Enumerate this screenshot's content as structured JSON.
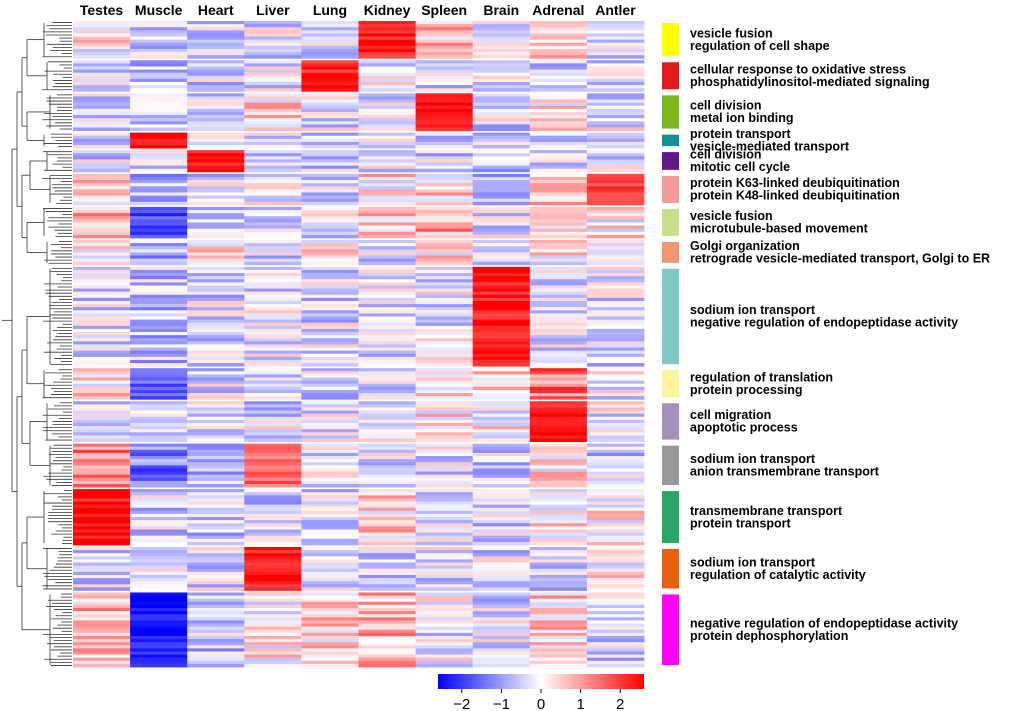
{
  "chart_data": {
    "type": "heatmap",
    "title": "",
    "columns": [
      "Testes",
      "Muscle",
      "Heart",
      "Liver",
      "Lung",
      "Kidney",
      "Spleen",
      "Brain",
      "Adrenal",
      "Antler"
    ],
    "color_scale": {
      "min": -2.6,
      "max": 2.6,
      "low_color": "#0000ff",
      "mid_color": "#ffffff",
      "high_color": "#ff0000",
      "ticks": [
        -2,
        -1,
        0,
        1,
        2
      ],
      "tick_labels": [
        "−2",
        "−1",
        "0",
        "1",
        "2"
      ]
    },
    "clusters": [
      {
        "rows": 12,
        "means": [
          0.2,
          -0.3,
          -0.4,
          -0.3,
          -0.2,
          2.3,
          0.6,
          -0.2,
          0.5,
          -0.4
        ],
        "color": "#ffff00",
        "terms": [
          "vesicle fusion",
          "regulation of cell shape"
        ]
      },
      {
        "rows": 10,
        "means": [
          -0.3,
          -0.4,
          -0.4,
          -0.2,
          2.3,
          -0.2,
          -0.3,
          -0.3,
          -0.3,
          -0.4
        ],
        "color": "#e31a1c",
        "terms": [
          "cellular response to oxidative stress",
          "phosphatidylinositol-mediated signaling"
        ]
      },
      {
        "rows": 12,
        "means": [
          -0.3,
          -0.3,
          -0.3,
          0.4,
          -0.2,
          -0.3,
          2.4,
          -0.3,
          0.3,
          -0.2
        ],
        "color": "#7cba1b",
        "terms": [
          "cell division",
          "metal ion binding"
        ]
      },
      {
        "rows": 5,
        "means": [
          -0.3,
          2.4,
          0.2,
          -0.3,
          -0.3,
          -0.3,
          -0.3,
          -0.3,
          -0.3,
          -0.3
        ],
        "color": "#17908f",
        "terms": [
          "protein transport",
          "vesicle-mediated transport"
        ]
      },
      {
        "rows": 7,
        "means": [
          -0.3,
          -0.3,
          2.4,
          -0.3,
          -0.3,
          -0.3,
          -0.3,
          -0.4,
          -0.3,
          -0.3
        ],
        "color": "#5b1a84",
        "terms": [
          "cell division",
          "mitotic cell cycle"
        ]
      },
      {
        "rows": 10,
        "means": [
          0.4,
          -0.6,
          -0.3,
          -0.2,
          -0.3,
          0.3,
          0.4,
          -0.5,
          0.5,
          1.8
        ],
        "color": "#f29b9b",
        "terms": [
          "protein K63-linked deubiquitination",
          "protein K48-linked deubiquitination"
        ]
      },
      {
        "rows": 10,
        "means": [
          0.7,
          -1.8,
          -0.3,
          -0.3,
          -0.3,
          0.4,
          0.9,
          -0.2,
          0.2,
          0.2
        ],
        "color": "#c8df8a",
        "terms": [
          "vesicle fusion",
          "microtubule-based movement"
        ]
      },
      {
        "rows": 8,
        "means": [
          0.2,
          -0.7,
          0.3,
          -0.3,
          0.4,
          -0.3,
          0.3,
          -0.3,
          0.2,
          0.2
        ],
        "color": "#f0976e",
        "terms": [
          "Golgi organization",
          "retrograde vesicle-mediated transport, Golgi to ER"
        ]
      },
      {
        "rows": 32,
        "means": [
          -0.4,
          -0.5,
          -0.3,
          -0.2,
          -0.3,
          -0.2,
          -0.2,
          2.4,
          -0.3,
          -0.3
        ],
        "color": "#7ec8c6",
        "terms": [
          "sodium ion transport",
          "negative regulation of endopeptidase activity"
        ]
      },
      {
        "rows": 10,
        "means": [
          0.3,
          -1.6,
          -0.3,
          -0.3,
          -0.3,
          -0.3,
          0.4,
          0.4,
          1.4,
          -0.2
        ],
        "color": "#faf49b",
        "terms": [
          "regulation of translation",
          "protein processing"
        ]
      },
      {
        "rows": 13,
        "means": [
          -0.2,
          -0.3,
          -0.2,
          -0.3,
          -0.3,
          -0.2,
          0.3,
          0.1,
          2.4,
          -0.1
        ],
        "color": "#a68fbd",
        "terms": [
          "cell migration",
          "apoptotic process"
        ]
      },
      {
        "rows": 14,
        "means": [
          1.3,
          -1.3,
          -0.6,
          1.6,
          -0.3,
          -0.2,
          -0.3,
          -0.4,
          0.3,
          -0.4
        ],
        "color": "#999999",
        "terms": [
          "sodium ion transport",
          "anion transmembrane transport"
        ]
      },
      {
        "rows": 18,
        "means": [
          2.4,
          -0.4,
          -0.4,
          -0.4,
          -0.3,
          0.4,
          -0.3,
          -0.3,
          0.3,
          0.2
        ],
        "color": "#2ca665",
        "terms": [
          "transmembrane transport",
          "protein transport"
        ]
      },
      {
        "rows": 14,
        "means": [
          -0.3,
          -0.3,
          -0.3,
          2.4,
          -0.3,
          -0.3,
          -0.2,
          -0.3,
          -0.3,
          0.2
        ],
        "color": "#e8600f",
        "terms": [
          "sodium ion transport",
          "regulation of catalytic activity"
        ]
      },
      {
        "rows": 24,
        "means": [
          0.6,
          -2.4,
          -0.5,
          0.2,
          0.4,
          0.8,
          -0.2,
          -0.3,
          0.5,
          -0.3
        ],
        "color": "#ff00ff",
        "terms": [
          "negative regulation of endopeptidase activity",
          "protein dephosphorylation"
        ]
      }
    ]
  }
}
